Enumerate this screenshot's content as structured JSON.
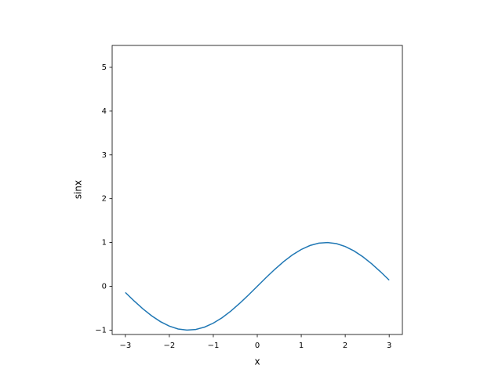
{
  "chart_data": {
    "type": "line",
    "xlabel": "x",
    "ylabel": "sinx",
    "x": [
      -3.0,
      -2.8,
      -2.6,
      -2.4,
      -2.2,
      -2.0,
      -1.8,
      -1.6,
      -1.4,
      -1.2,
      -1.0,
      -0.8,
      -0.6,
      -0.4,
      -0.2,
      0,
      0.2,
      0.4,
      0.6,
      0.8,
      1.0,
      1.2,
      1.4,
      1.6,
      1.8,
      2.0,
      2.2,
      2.4,
      2.6,
      2.8,
      3.0
    ],
    "values": [
      -0.141,
      -0.335,
      -0.516,
      -0.675,
      -0.808,
      -0.909,
      -0.974,
      -1.0,
      -0.985,
      -0.932,
      -0.841,
      -0.717,
      -0.565,
      -0.389,
      -0.199,
      0,
      0.199,
      0.389,
      0.565,
      0.717,
      0.841,
      0.932,
      0.985,
      1.0,
      0.974,
      0.909,
      0.808,
      0.675,
      0.516,
      0.335,
      0.141
    ],
    "color": "#1f77b4",
    "xlim": [
      -3.3,
      3.3
    ],
    "ylim": [
      -1.1,
      5.5
    ],
    "xticks": [
      {
        "value": -3,
        "label": "−3"
      },
      {
        "value": -2,
        "label": "−2"
      },
      {
        "value": -1,
        "label": "−1"
      },
      0,
      1,
      2,
      3
    ],
    "yticks": [
      {
        "value": -1,
        "label": "−1"
      },
      0,
      1,
      2,
      3,
      4,
      5
    ],
    "grid": false
  }
}
